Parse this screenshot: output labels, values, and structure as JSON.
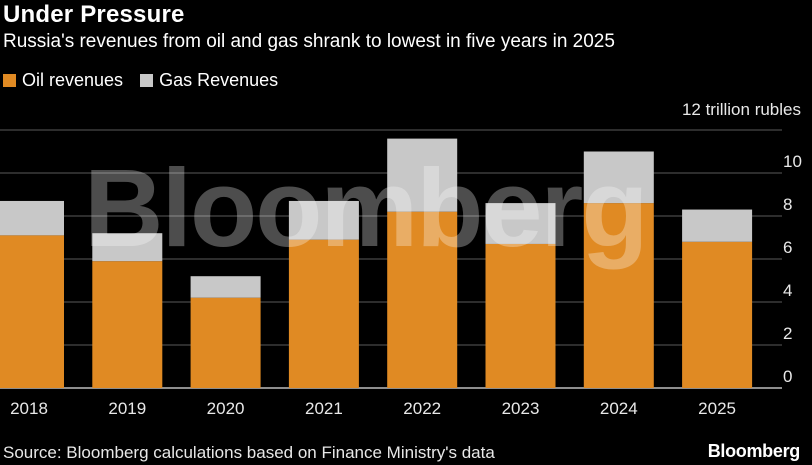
{
  "title": "Under Pressure",
  "subtitle": "Russia's revenues from oil and gas shrank to lowest in five years in 2025",
  "legend": {
    "oil": "Oil revenues",
    "gas": "Gas Revenues"
  },
  "unit_label": "12 trillion rubles",
  "source": "Source: Bloomberg calculations based on Finance Ministry's data",
  "brand": "Bloomberg",
  "watermark": "Bloomberg",
  "colors": {
    "oil": "#e08a23",
    "gas": "#c8c8c8",
    "grid": "#5a5a5a",
    "background": "#000000"
  },
  "chart_data": {
    "type": "bar",
    "stacked": true,
    "title": "Under Pressure",
    "subtitle": "Russia's revenues from oil and gas shrank to lowest in five years in 2025",
    "categories": [
      "2018",
      "2019",
      "2020",
      "2021",
      "2022",
      "2023",
      "2024",
      "2025"
    ],
    "series": [
      {
        "name": "Oil revenues",
        "values": [
          7.1,
          5.9,
          4.2,
          6.9,
          8.2,
          6.7,
          8.6,
          6.8
        ]
      },
      {
        "name": "Gas Revenues",
        "values": [
          1.6,
          1.3,
          1.0,
          1.8,
          3.4,
          1.9,
          2.4,
          1.5
        ]
      }
    ],
    "ylim": [
      0,
      12
    ],
    "yticks": [
      "0",
      "2",
      "4",
      "6",
      "8",
      "10"
    ],
    "ylabel": "12 trillion rubles",
    "xlabel": "",
    "grid": true,
    "legend_position": "top-left"
  }
}
